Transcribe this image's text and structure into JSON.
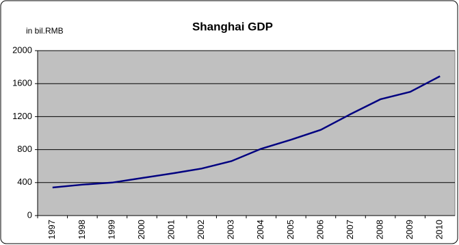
{
  "chart_data": {
    "type": "line",
    "title": "Shanghai GDP",
    "y_label": "in bil.RMB",
    "categories": [
      "1997",
      "1998",
      "1999",
      "2000",
      "2001",
      "2002",
      "2003",
      "2004",
      "2005",
      "2006",
      "2007",
      "2008",
      "2009",
      "2010"
    ],
    "series": [
      {
        "name": "GDP",
        "color": "#000080",
        "values": [
          340,
          375,
          400,
          455,
          510,
          570,
          660,
          810,
          920,
          1040,
          1230,
          1410,
          1500,
          1690
        ]
      }
    ],
    "ylim": [
      0,
      2000
    ],
    "yticks": [
      0,
      400,
      800,
      1200,
      1600,
      2000
    ],
    "grid": true
  }
}
